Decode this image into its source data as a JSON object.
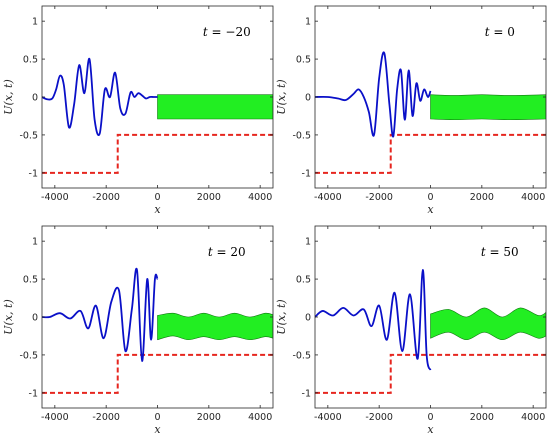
{
  "colors": {
    "wave": "#0a10c8",
    "step": "#e6261f",
    "band_fill": "#22ee22",
    "band_edge": "#117711",
    "axis": "#262626"
  },
  "chart_data": [
    {
      "type": "line",
      "annotation": "t = −20",
      "t": -20,
      "xlabel": "x",
      "ylabel": "U(x, t)",
      "xlim": [
        -4500,
        4500
      ],
      "ylim": [
        -1.2,
        1.2
      ],
      "xticks": [
        -4000,
        -2000,
        0,
        2000,
        4000
      ],
      "yticks": [
        -1,
        -0.5,
        0,
        0.5,
        1
      ],
      "xtick_labels": [
        "-4000",
        "-2000",
        "0",
        "2000",
        "4000"
      ],
      "ytick_labels": [
        "-1",
        "-0.5",
        "0",
        "0.5",
        "1"
      ],
      "wave": {
        "x": [
          -4500,
          -4300,
          -4100,
          -3950,
          -3800,
          -3650,
          -3450,
          -3250,
          -3050,
          -2850,
          -2650,
          -2450,
          -2250,
          -2050,
          -1850,
          -1650,
          -1450,
          -1250,
          -1050,
          -900,
          -750,
          -600,
          -450,
          -300,
          -150,
          0
        ],
        "y": [
          0.0,
          -0.03,
          -0.02,
          0.1,
          0.28,
          0.16,
          -0.4,
          -0.1,
          0.42,
          0.05,
          0.5,
          -0.3,
          -0.48,
          0.1,
          0.0,
          0.32,
          -0.15,
          -0.22,
          0.06,
          0.0,
          0.05,
          0.02,
          -0.02,
          0.0,
          0.0,
          0.0
        ]
      },
      "step": {
        "x": [
          -4500,
          -1550,
          -1550,
          0,
          4500
        ],
        "y": [
          -1.0,
          -1.0,
          -0.5,
          -0.5,
          -0.5
        ]
      },
      "band": {
        "x": [
          0,
          1000,
          2000,
          3000,
          4500
        ],
        "upper": [
          0.03,
          0.03,
          0.03,
          0.03,
          0.03
        ],
        "lower": [
          -0.29,
          -0.29,
          -0.29,
          -0.29,
          -0.29
        ]
      }
    },
    {
      "type": "line",
      "annotation": "t = 0",
      "t": 0,
      "xlabel": "x",
      "ylabel": "U(x, t)",
      "xlim": [
        -4500,
        4500
      ],
      "ylim": [
        -1.2,
        1.2
      ],
      "xticks": [
        -4000,
        -2000,
        0,
        2000,
        4000
      ],
      "yticks": [
        -1,
        -0.5,
        0,
        0.5,
        1
      ],
      "xtick_labels": [
        "-4000",
        "-2000",
        "0",
        "2000",
        "4000"
      ],
      "ytick_labels": [
        "-1",
        "-0.5",
        "0",
        "0.5",
        "1"
      ],
      "wave": {
        "x": [
          -4500,
          -4000,
          -3600,
          -3300,
          -3000,
          -2800,
          -2600,
          -2400,
          -2200,
          -2000,
          -1800,
          -1600,
          -1450,
          -1300,
          -1150,
          -1000,
          -850,
          -700,
          -550,
          -400,
          -250,
          -100,
          0
        ],
        "y": [
          0.0,
          0.0,
          -0.02,
          -0.04,
          0.04,
          0.1,
          0.0,
          -0.2,
          -0.5,
          0.25,
          0.58,
          -0.1,
          -0.52,
          0.1,
          0.35,
          -0.3,
          0.35,
          -0.25,
          0.18,
          -0.05,
          0.1,
          0.0,
          0.08
        ]
      },
      "step": {
        "x": [
          -4500,
          -1550,
          -1550,
          0,
          4500
        ],
        "y": [
          -1.0,
          -1.0,
          -0.5,
          -0.5,
          -0.5
        ]
      },
      "band": {
        "x": [
          0,
          1000,
          2000,
          3000,
          4500
        ],
        "upper": [
          0.03,
          0.02,
          0.03,
          0.02,
          0.03
        ],
        "lower": [
          -0.29,
          -0.3,
          -0.29,
          -0.3,
          -0.29
        ]
      }
    },
    {
      "type": "line",
      "annotation": "t = 20",
      "t": 20,
      "xlabel": "x",
      "ylabel": "U(x, t)",
      "xlim": [
        -4500,
        4500
      ],
      "ylim": [
        -1.2,
        1.2
      ],
      "xticks": [
        -4000,
        -2000,
        0,
        2000,
        4000
      ],
      "yticks": [
        -1,
        -0.5,
        0,
        0.5,
        1
      ],
      "xtick_labels": [
        "-4000",
        "-2000",
        "0",
        "2000",
        "4000"
      ],
      "ytick_labels": [
        "-1",
        "-0.5",
        "0",
        "0.5",
        "1"
      ],
      "wave": {
        "x": [
          -4500,
          -4200,
          -3800,
          -3400,
          -3000,
          -2700,
          -2400,
          -2100,
          -1800,
          -1500,
          -1250,
          -1000,
          -800,
          -600,
          -400,
          -250,
          -100,
          0
        ],
        "y": [
          0.0,
          0.0,
          0.05,
          -0.02,
          0.08,
          -0.15,
          0.15,
          -0.28,
          0.2,
          0.35,
          -0.45,
          0.1,
          0.62,
          -0.58,
          0.5,
          -0.3,
          0.5,
          0.5
        ]
      },
      "step": {
        "x": [
          -4500,
          -1550,
          -1550,
          0,
          4500
        ],
        "y": [
          -1.0,
          -1.0,
          -0.5,
          -0.5,
          -0.5
        ]
      },
      "band": {
        "x": [
          0,
          600,
          1200,
          1800,
          2400,
          3000,
          3600,
          4200,
          4500
        ],
        "upper": [
          0.02,
          0.05,
          0.0,
          0.05,
          0.0,
          0.05,
          0.0,
          0.05,
          0.03
        ],
        "lower": [
          -0.3,
          -0.25,
          -0.3,
          -0.26,
          -0.3,
          -0.26,
          -0.3,
          -0.26,
          -0.28
        ]
      }
    },
    {
      "type": "line",
      "annotation": "t = 50",
      "t": 50,
      "xlabel": "x",
      "ylabel": "U(x, t)",
      "xlim": [
        -4500,
        4500
      ],
      "ylim": [
        -1.2,
        1.2
      ],
      "xticks": [
        -4000,
        -2000,
        0,
        2000,
        4000
      ],
      "yticks": [
        -1,
        -0.5,
        0,
        0.5,
        1
      ],
      "xtick_labels": [
        "-4000",
        "-2000",
        "0",
        "2000",
        "4000"
      ],
      "ytick_labels": [
        "-1",
        "-0.5",
        "0",
        "0.5",
        "1"
      ],
      "wave": {
        "x": [
          -4500,
          -4200,
          -3800,
          -3400,
          -3000,
          -2600,
          -2300,
          -2000,
          -1700,
          -1400,
          -1100,
          -800,
          -500,
          -300,
          -150,
          0
        ],
        "y": [
          0.0,
          0.08,
          0.02,
          0.12,
          0.02,
          0.1,
          -0.12,
          0.15,
          -0.3,
          0.32,
          -0.45,
          0.3,
          -0.55,
          0.62,
          -0.5,
          -0.7
        ]
      },
      "step": {
        "x": [
          -4500,
          -1550,
          -1550,
          0,
          4500
        ],
        "y": [
          -1.0,
          -1.0,
          -0.5,
          -0.5,
          -0.5
        ]
      },
      "band": {
        "x": [
          0,
          700,
          1400,
          2100,
          2800,
          3500,
          4200,
          4500
        ],
        "upper": [
          0.04,
          0.1,
          0.0,
          0.12,
          0.0,
          0.12,
          0.02,
          0.06
        ],
        "lower": [
          -0.28,
          -0.2,
          -0.3,
          -0.2,
          -0.3,
          -0.2,
          -0.28,
          -0.25
        ]
      }
    }
  ]
}
